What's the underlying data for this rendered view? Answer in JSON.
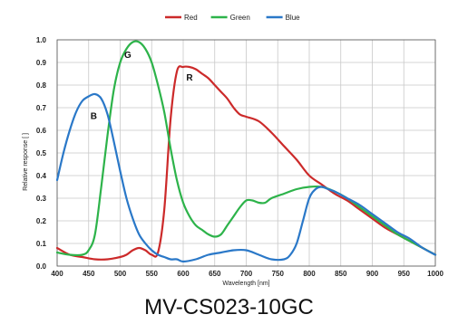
{
  "caption": "MV-CS023-10GC",
  "colors": {
    "Red": "#cc2a2a",
    "Green": "#2db34a",
    "Blue": "#2a78c8",
    "grid": "#c8c8c8",
    "axis": "#555555"
  },
  "chart_data": {
    "type": "line",
    "title": "",
    "xlabel": "Wavelength [nm]",
    "ylabel": "Relative response [ ]",
    "xlim": [
      400,
      1000
    ],
    "ylim": [
      0,
      1.0
    ],
    "xticks": [
      400,
      450,
      500,
      550,
      600,
      650,
      700,
      750,
      800,
      850,
      900,
      950,
      1000
    ],
    "yticks": [
      0.0,
      0.1,
      0.2,
      0.3,
      0.4,
      0.5,
      0.6,
      0.7,
      0.8,
      0.9,
      1.0
    ],
    "grid": true,
    "legend": "top-center",
    "series": [
      {
        "name": "Red",
        "label": "R",
        "label_at": [
          610,
          0.82
        ],
        "x": [
          400,
          420,
          440,
          460,
          480,
          500,
          510,
          520,
          530,
          540,
          550,
          560,
          570,
          580,
          590,
          600,
          610,
          620,
          630,
          640,
          650,
          660,
          670,
          680,
          690,
          700,
          720,
          740,
          760,
          780,
          800,
          820,
          840,
          860,
          880,
          900,
          920,
          940,
          960,
          980,
          1000
        ],
        "y": [
          0.08,
          0.05,
          0.04,
          0.03,
          0.03,
          0.04,
          0.05,
          0.07,
          0.08,
          0.07,
          0.05,
          0.06,
          0.25,
          0.65,
          0.86,
          0.88,
          0.88,
          0.87,
          0.85,
          0.83,
          0.8,
          0.77,
          0.74,
          0.7,
          0.67,
          0.66,
          0.64,
          0.59,
          0.53,
          0.47,
          0.4,
          0.36,
          0.32,
          0.29,
          0.25,
          0.21,
          0.17,
          0.14,
          0.11,
          0.08,
          0.05
        ]
      },
      {
        "name": "Green",
        "label": "G",
        "label_at": [
          512,
          0.92
        ],
        "x": [
          400,
          420,
          440,
          450,
          460,
          470,
          480,
          490,
          500,
          510,
          520,
          530,
          540,
          550,
          560,
          570,
          580,
          590,
          600,
          610,
          620,
          630,
          640,
          650,
          660,
          670,
          680,
          690,
          700,
          710,
          720,
          730,
          740,
          760,
          780,
          800,
          820,
          840,
          860,
          880,
          900,
          920,
          940,
          960,
          980,
          1000
        ],
        "y": [
          0.06,
          0.05,
          0.05,
          0.07,
          0.14,
          0.35,
          0.58,
          0.78,
          0.9,
          0.96,
          0.99,
          0.99,
          0.96,
          0.9,
          0.8,
          0.68,
          0.52,
          0.38,
          0.28,
          0.22,
          0.18,
          0.16,
          0.14,
          0.13,
          0.14,
          0.18,
          0.22,
          0.26,
          0.29,
          0.29,
          0.28,
          0.28,
          0.3,
          0.32,
          0.34,
          0.35,
          0.35,
          0.33,
          0.3,
          0.26,
          0.22,
          0.18,
          0.14,
          0.11,
          0.08,
          0.05
        ]
      },
      {
        "name": "Blue",
        "label": "B",
        "label_at": [
          458,
          0.65
        ],
        "x": [
          400,
          410,
          420,
          430,
          440,
          450,
          460,
          470,
          480,
          490,
          500,
          510,
          520,
          530,
          540,
          550,
          560,
          570,
          580,
          590,
          600,
          620,
          640,
          660,
          680,
          700,
          720,
          740,
          760,
          770,
          780,
          790,
          800,
          810,
          820,
          830,
          840,
          860,
          880,
          900,
          920,
          940,
          960,
          980,
          1000
        ],
        "y": [
          0.38,
          0.5,
          0.6,
          0.68,
          0.73,
          0.75,
          0.76,
          0.74,
          0.67,
          0.55,
          0.42,
          0.3,
          0.21,
          0.14,
          0.1,
          0.07,
          0.05,
          0.04,
          0.03,
          0.03,
          0.02,
          0.03,
          0.05,
          0.06,
          0.07,
          0.07,
          0.05,
          0.03,
          0.03,
          0.05,
          0.1,
          0.2,
          0.3,
          0.34,
          0.35,
          0.34,
          0.33,
          0.3,
          0.27,
          0.23,
          0.19,
          0.15,
          0.12,
          0.08,
          0.05
        ]
      }
    ]
  }
}
